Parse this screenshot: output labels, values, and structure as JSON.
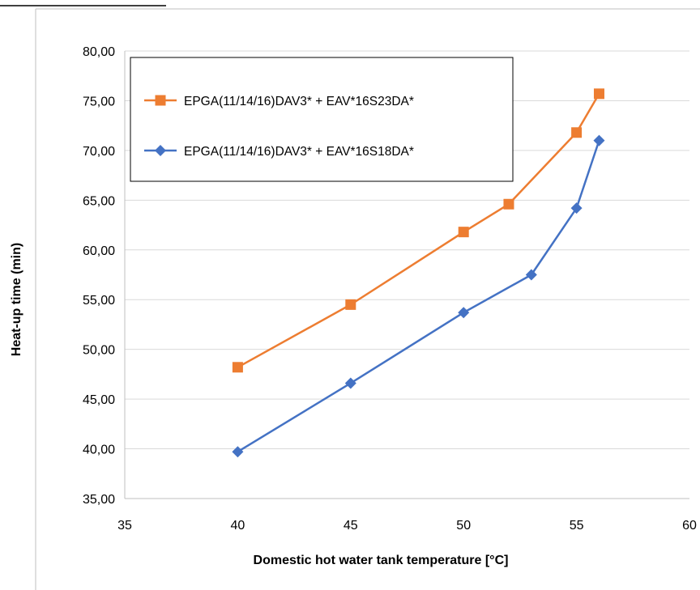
{
  "chart_data": {
    "type": "line",
    "xlabel": "Domestic hot water tank temperature [°C]",
    "ylabel": "Heat-up time (min)",
    "xlim": [
      35,
      60
    ],
    "ylim": [
      35,
      80
    ],
    "x_ticks": [
      "35",
      "40",
      "45",
      "50",
      "55",
      "60"
    ],
    "y_ticks": [
      "35,00",
      "40,00",
      "45,00",
      "50,00",
      "55,00",
      "60,00",
      "65,00",
      "70,00",
      "75,00",
      "80,00"
    ],
    "grid": "horizontal",
    "legend_position": "top-left",
    "series": [
      {
        "name": "EPGA(11/14/16)DAV3* + EAV*16S23DA*",
        "color": "#ED7D31",
        "marker": "square",
        "x": [
          40,
          45,
          50,
          52,
          55,
          56
        ],
        "y": [
          48.2,
          54.5,
          61.8,
          64.6,
          71.8,
          75.7
        ]
      },
      {
        "name": "EPGA(11/14/16)DAV3* + EAV*16S18DA*",
        "color": "#4472C4",
        "marker": "diamond",
        "x": [
          40,
          45,
          50,
          53,
          55,
          56
        ],
        "y": [
          39.7,
          46.6,
          53.7,
          57.5,
          64.2,
          71.0
        ]
      }
    ]
  }
}
